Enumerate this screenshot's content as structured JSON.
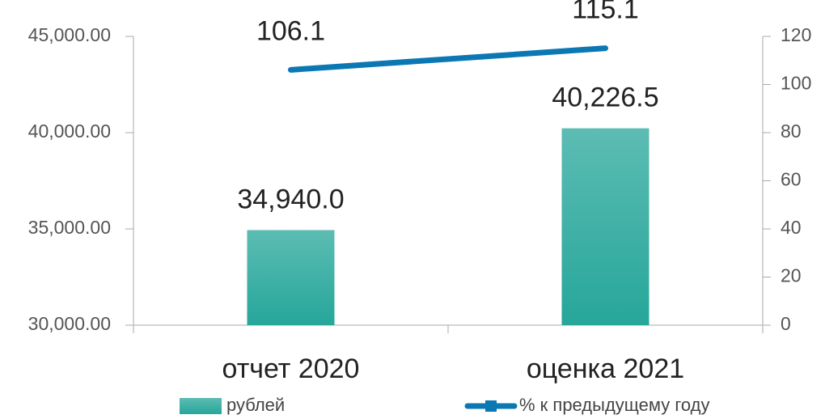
{
  "chart_data": {
    "type": "bar",
    "categories": [
      "отчет 2020",
      "оценка 2021"
    ],
    "series": [
      {
        "name": "рублей",
        "type": "bar",
        "color": "#26a69a",
        "values": [
          34940.0,
          40226.5
        ],
        "value_labels": [
          "34,940.0",
          "40,226.5"
        ]
      },
      {
        "name": "% к предыдущему году",
        "type": "line",
        "axis": "y2",
        "color": "#0b78b4",
        "values": [
          106.1,
          115.1
        ]
      }
    ],
    "ylim": [
      30000,
      45000
    ],
    "yticks": [
      {
        "value": 30000,
        "label": "30,000.00"
      },
      {
        "value": 35000,
        "label": "35,000.00"
      },
      {
        "value": 40000,
        "label": "40,000.00"
      },
      {
        "value": 45000,
        "label": "45,000.00"
      }
    ],
    "y2lim": [
      0,
      120
    ],
    "y2ticks": [
      0,
      20,
      40,
      60,
      80,
      100,
      120
    ],
    "legend": "bottom"
  }
}
